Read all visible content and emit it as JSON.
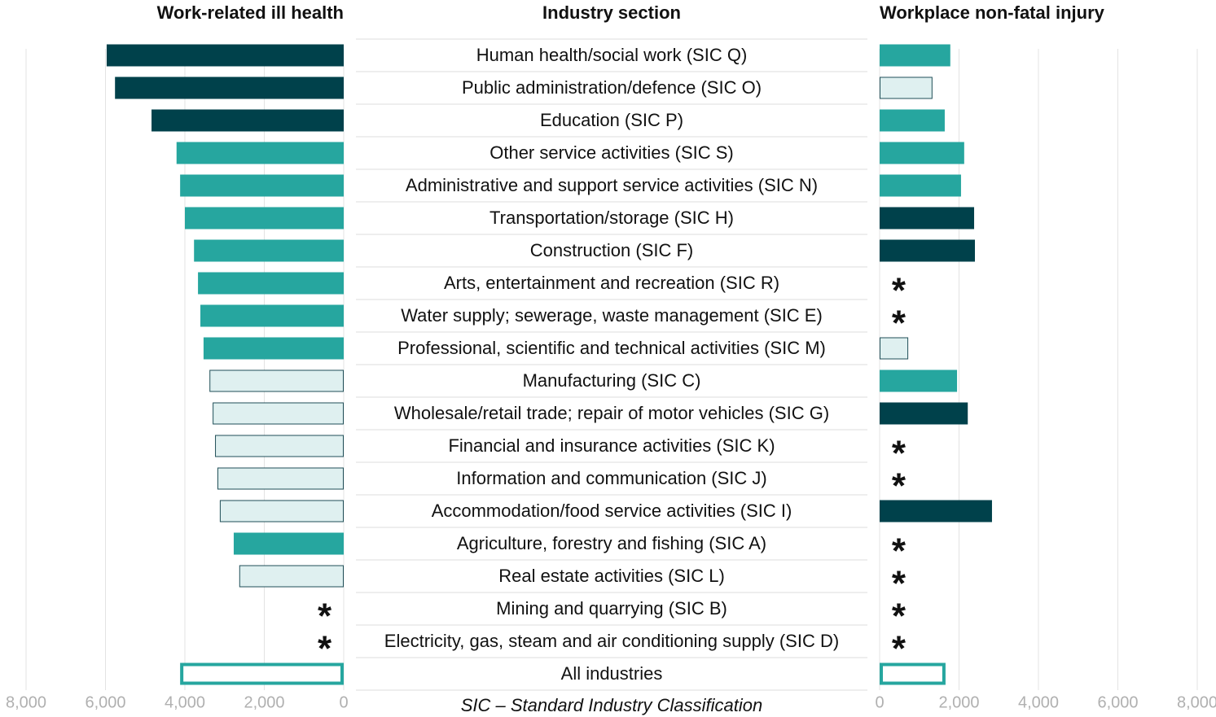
{
  "chart_data": {
    "type": "bar",
    "orientation": "horizontal",
    "column_title": "Industry section",
    "footnote": "SIC – Standard Industry Classification",
    "missing_marker": "*",
    "missing_color": "#137f7f",
    "grid": true,
    "categories": [
      "Human health/social work (SIC Q)",
      "Public administration/defence (SIC O)",
      "Education (SIC P)",
      "Other service activities (SIC S)",
      "Administrative and support service activities (SIC N)",
      "Transportation/storage (SIC H)",
      "Construction (SIC F)",
      "Arts, entertainment and recreation (SIC R)",
      "Water supply; sewerage, waste management (SIC E)",
      "Professional, scientific and technical activities (SIC M)",
      "Manufacturing (SIC C)",
      "Wholesale/retail trade; repair of motor vehicles (SIC G)",
      "Financial and insurance activities (SIC K)",
      "Information and communication (SIC J)",
      "Accommodation/food service activities (SIC I)",
      "Agriculture, forestry and fishing (SIC A)",
      "Real estate activities (SIC L)",
      "Mining and quarrying (SIC B)",
      "Electricity, gas, steam and air conditioning supply (SIC D)",
      "All industries"
    ],
    "panels": [
      {
        "title": "Work-related ill health",
        "reversed": true,
        "values": [
          5970,
          5760,
          4840,
          4210,
          4120,
          4000,
          3770,
          3670,
          3610,
          3530,
          3380,
          3300,
          3240,
          3180,
          3120,
          2770,
          2630,
          null,
          null,
          4120
        ],
        "fills": [
          "#00414b",
          "#00414b",
          "#00414b",
          "#26a69f",
          "#26a69f",
          "#26a69f",
          "#26a69f",
          "#26a69f",
          "#26a69f",
          "#26a69f",
          "#dff0f0",
          "#dff0f0",
          "#dff0f0",
          "#dff0f0",
          "#dff0f0",
          "#26a69f",
          "#dff0f0",
          null,
          null,
          "#ffffff"
        ],
        "strokes": [
          "#00414b",
          "#00414b",
          "#00414b",
          "#26a69f",
          "#26a69f",
          "#26a69f",
          "#26a69f",
          "#26a69f",
          "#26a69f",
          "#26a69f",
          "#1f4e57",
          "#1f4e57",
          "#1f4e57",
          "#1f4e57",
          "#1f4e57",
          "#26a69f",
          "#1f4e57",
          null,
          null,
          "#26a69f"
        ],
        "stroke_widths": [
          1,
          1,
          1,
          1,
          1,
          1,
          1,
          1,
          1,
          1,
          1,
          1,
          1,
          1,
          1,
          1,
          1,
          null,
          null,
          4
        ],
        "xlim": [
          0,
          8000
        ],
        "xticks": [
          0,
          {
            "value": 2000,
            "label": "2,000"
          },
          {
            "value": 4000,
            "label": "4,000"
          },
          {
            "value": 6000,
            "label": "6,000"
          },
          {
            "value": 8000,
            "label": "8,000"
          }
        ]
      },
      {
        "title": "Workplace non-fatal injury",
        "reversed": false,
        "values": [
          1780,
          1330,
          1640,
          2130,
          2050,
          2380,
          2400,
          null,
          null,
          720,
          1950,
          2220,
          null,
          null,
          2830,
          null,
          null,
          null,
          null,
          1660
        ],
        "fills": [
          "#26a69f",
          "#dff0f0",
          "#26a69f",
          "#26a69f",
          "#26a69f",
          "#00414b",
          "#00414b",
          null,
          null,
          "#dff0f0",
          "#26a69f",
          "#00414b",
          null,
          null,
          "#00414b",
          null,
          null,
          null,
          null,
          "#ffffff"
        ],
        "strokes": [
          "#26a69f",
          "#1f4e57",
          "#26a69f",
          "#26a69f",
          "#26a69f",
          "#00414b",
          "#00414b",
          null,
          null,
          "#1f4e57",
          "#26a69f",
          "#00414b",
          null,
          null,
          "#00414b",
          null,
          null,
          null,
          null,
          "#26a69f"
        ],
        "stroke_widths": [
          1,
          1,
          1,
          1,
          1,
          1,
          1,
          null,
          null,
          1,
          1,
          1,
          null,
          null,
          1,
          null,
          null,
          null,
          null,
          4
        ],
        "xlim": [
          0,
          8000
        ],
        "xticks": [
          0,
          {
            "value": 2000,
            "label": "2,000"
          },
          {
            "value": 4000,
            "label": "4,000"
          },
          {
            "value": 6000,
            "label": "6,000"
          },
          {
            "value": 8000,
            "label": "8,000"
          }
        ]
      }
    ]
  }
}
